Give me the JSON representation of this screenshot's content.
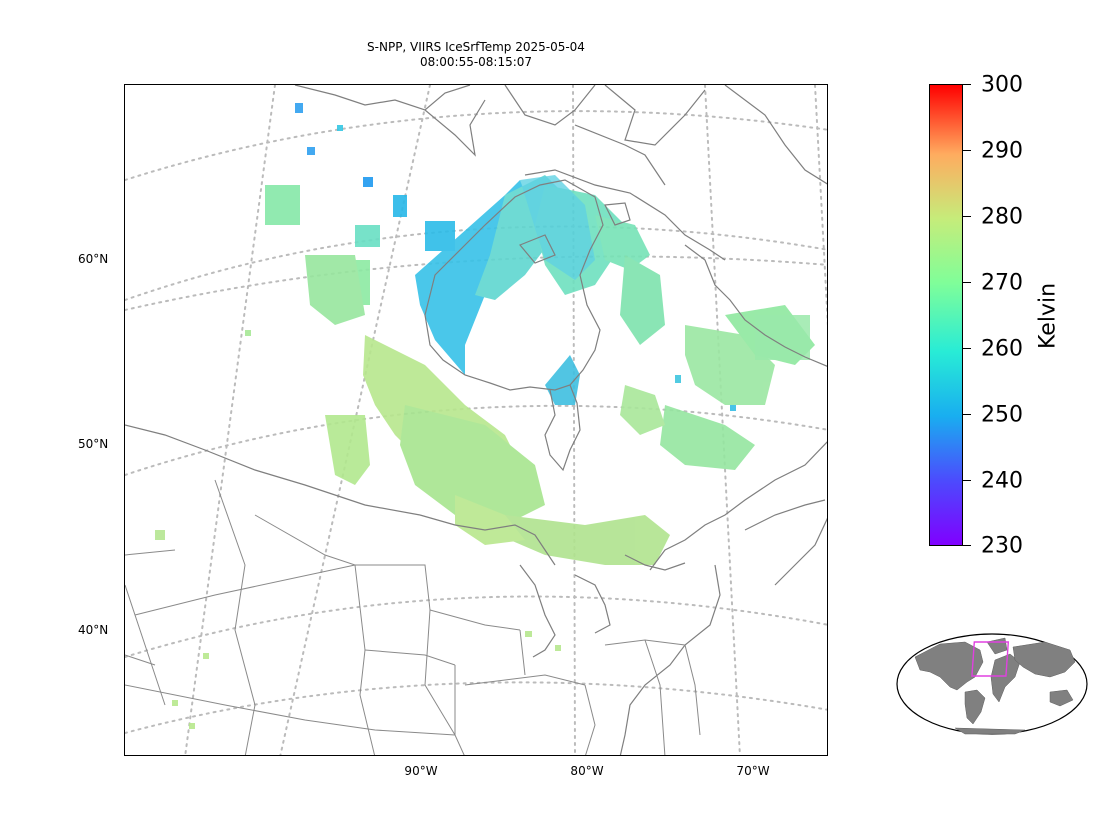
{
  "title": {
    "line1": "S-NPP, VIIRS IceSrfTemp 2025-05-04",
    "line2": "08:00:55-08:15:07"
  },
  "map": {
    "lat_labels": [
      "60°N",
      "50°N",
      "40°N"
    ],
    "lon_labels": [
      "90°W",
      "80°W",
      "70°W"
    ],
    "graticule_color": "#bbbbbb",
    "coastline_color": "#7f7f7f"
  },
  "colorbar": {
    "label": "Kelvin",
    "ticks": [
      "300",
      "290",
      "280",
      "270",
      "260",
      "250",
      "240",
      "230"
    ],
    "vmin": 230,
    "vmax": 300,
    "colormap": "rainbow"
  },
  "inset": {
    "name": "global-locator",
    "land_color": "#808080",
    "box_color": "#e040e0"
  }
}
